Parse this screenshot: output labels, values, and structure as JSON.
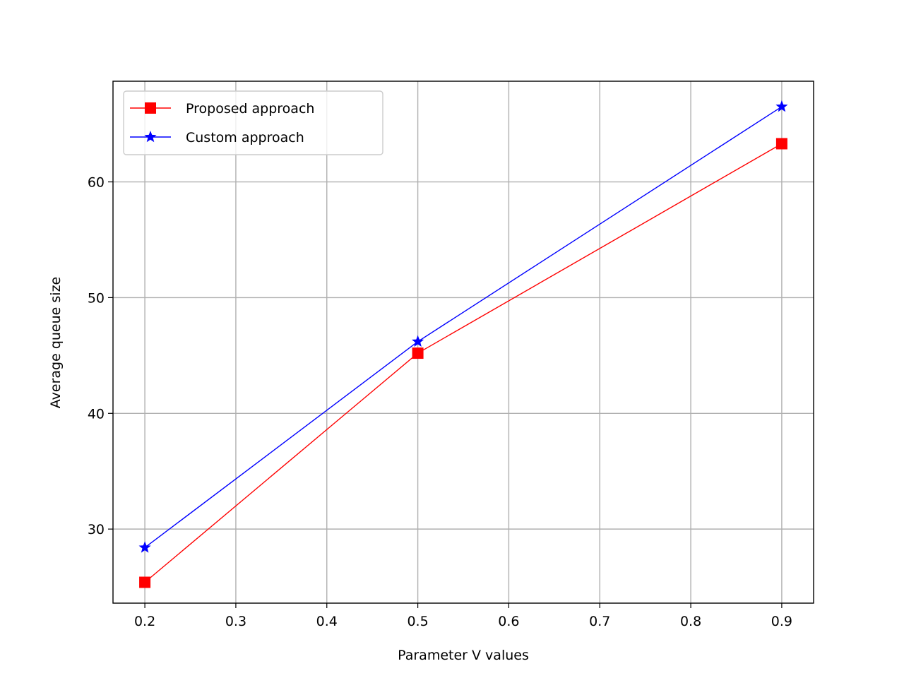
{
  "chart_data": {
    "type": "line",
    "x": [
      0.2,
      0.5,
      0.9
    ],
    "xlabel": "Parameter V values",
    "ylabel": "Average queue size",
    "xlim": [
      0.165,
      0.935
    ],
    "ylim": [
      23.6,
      68.7
    ],
    "xticks": [
      "0.2",
      "0.3",
      "0.4",
      "0.5",
      "0.6",
      "0.7",
      "0.8",
      "0.9"
    ],
    "yticks": [
      "30",
      "40",
      "50",
      "60"
    ],
    "grid": true,
    "legend_position": "top-left",
    "series": [
      {
        "name": "Proposed approach",
        "values": [
          25.4,
          45.2,
          63.3
        ],
        "color": "#ff0000",
        "marker": "square"
      },
      {
        "name": "Custom approach",
        "values": [
          28.4,
          46.2,
          66.5
        ],
        "color": "#0000ff",
        "marker": "star"
      }
    ]
  }
}
